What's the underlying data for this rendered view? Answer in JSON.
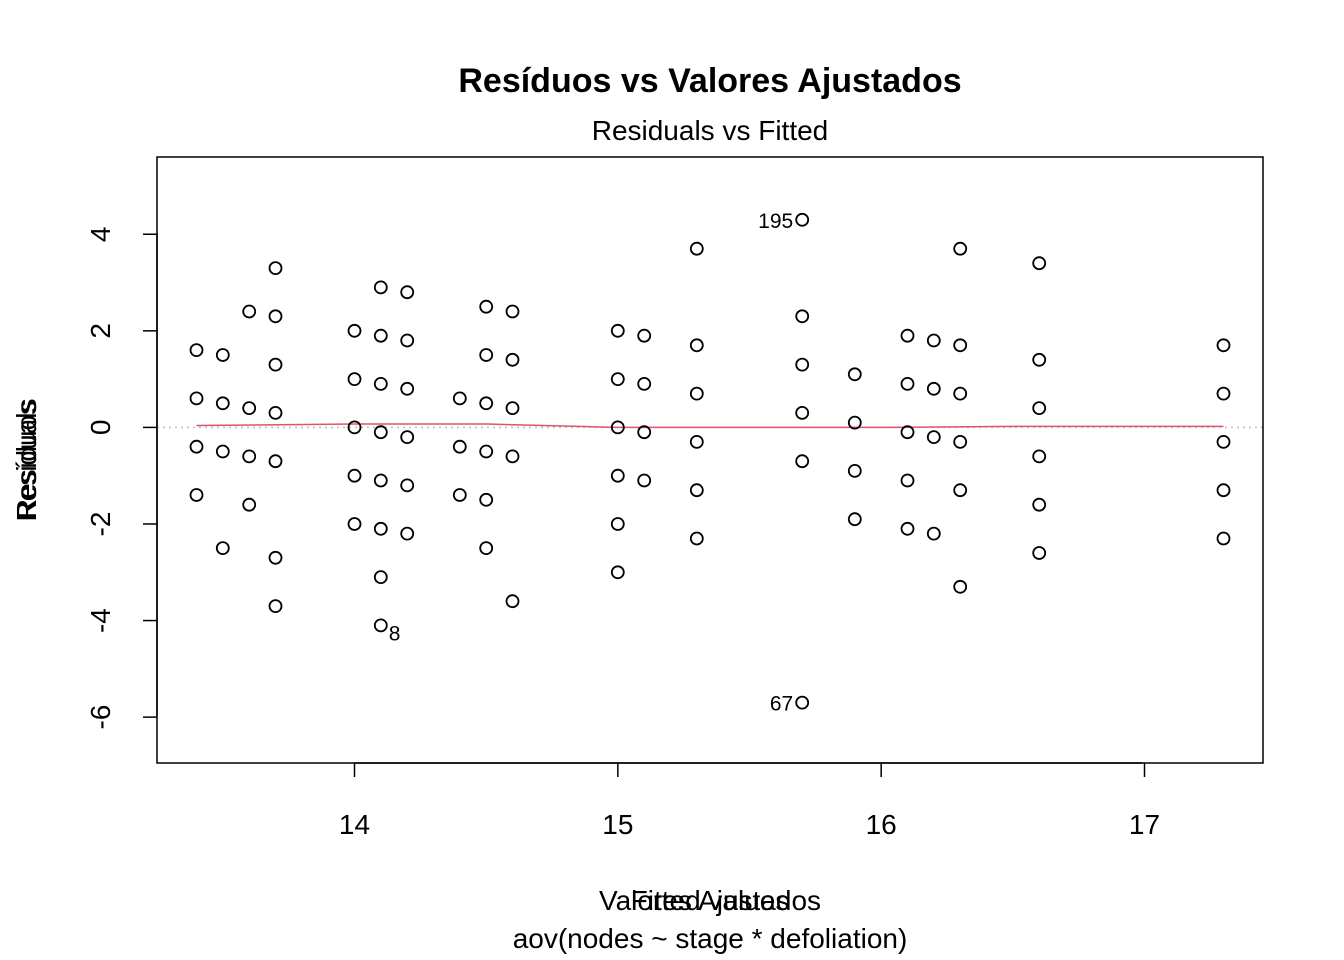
{
  "chart_data": {
    "type": "scatter",
    "title": "Resíduos vs Valores Ajustados",
    "subtitle": "Residuals vs Fitted",
    "xlabel_overlap_1": "Valores Ajustados",
    "xlabel_overlap_2": "Fitted values",
    "xlabel_caption": "aov(nodes ~ stage * defoliation)",
    "ylabel_overlap_1": "Resíduos",
    "ylabel_overlap_2": "Residuals",
    "xlim": [
      13.25,
      17.45
    ],
    "ylim": [
      -6.95,
      5.6
    ],
    "x_ticks": [
      14,
      15,
      16,
      17
    ],
    "x_tick_labels": [
      "14",
      "15",
      "16",
      "17"
    ],
    "y_ticks": [
      -6,
      -4,
      -2,
      0,
      2,
      4
    ],
    "y_tick_labels": [
      "-6",
      "-4",
      "-2",
      "0",
      "2",
      "4"
    ],
    "reference_line": {
      "y": 0,
      "style": "dotted",
      "color": "#bebebe"
    },
    "smooth_line": {
      "color": "#df536b",
      "x": [
        13.4,
        14.0,
        14.5,
        15.0,
        15.5,
        16.0,
        16.5,
        17.3
      ],
      "y": [
        0.04,
        0.07,
        0.07,
        0.0,
        0.0,
        0.0,
        0.02,
        0.02
      ]
    },
    "series": [
      {
        "points": [
          {
            "x": 13.4,
            "y": 1.6
          },
          {
            "x": 13.4,
            "y": 0.6
          },
          {
            "x": 13.4,
            "y": -0.4
          },
          {
            "x": 13.4,
            "y": -1.4
          },
          {
            "x": 13.5,
            "y": 1.5
          },
          {
            "x": 13.5,
            "y": 0.5
          },
          {
            "x": 13.5,
            "y": -0.5
          },
          {
            "x": 13.5,
            "y": -2.5
          },
          {
            "x": 13.6,
            "y": 2.4
          },
          {
            "x": 13.6,
            "y": 0.4
          },
          {
            "x": 13.6,
            "y": -0.6
          },
          {
            "x": 13.6,
            "y": -1.6
          },
          {
            "x": 13.7,
            "y": 3.3
          },
          {
            "x": 13.7,
            "y": 2.3
          },
          {
            "x": 13.7,
            "y": 1.3
          },
          {
            "x": 13.7,
            "y": 0.3
          },
          {
            "x": 13.7,
            "y": -0.7
          },
          {
            "x": 13.7,
            "y": -2.7
          },
          {
            "x": 13.7,
            "y": -3.7
          },
          {
            "x": 14.0,
            "y": 2.0
          },
          {
            "x": 14.0,
            "y": 1.0
          },
          {
            "x": 14.0,
            "y": 0.0
          },
          {
            "x": 14.0,
            "y": -1.0
          },
          {
            "x": 14.0,
            "y": -2.0
          },
          {
            "x": 14.1,
            "y": 2.9
          },
          {
            "x": 14.1,
            "y": 1.9
          },
          {
            "x": 14.1,
            "y": 0.9
          },
          {
            "x": 14.1,
            "y": -0.1
          },
          {
            "x": 14.1,
            "y": -1.1
          },
          {
            "x": 14.1,
            "y": -2.1
          },
          {
            "x": 14.1,
            "y": -3.1
          },
          {
            "x": 14.1,
            "y": -4.1,
            "label": "8"
          },
          {
            "x": 14.2,
            "y": 2.8
          },
          {
            "x": 14.2,
            "y": 1.8
          },
          {
            "x": 14.2,
            "y": 0.8
          },
          {
            "x": 14.2,
            "y": -0.2
          },
          {
            "x": 14.2,
            "y": -1.2
          },
          {
            "x": 14.2,
            "y": -2.2
          },
          {
            "x": 14.4,
            "y": 0.6
          },
          {
            "x": 14.4,
            "y": -0.4
          },
          {
            "x": 14.4,
            "y": -1.4
          },
          {
            "x": 14.5,
            "y": 2.5
          },
          {
            "x": 14.5,
            "y": 1.5
          },
          {
            "x": 14.5,
            "y": 0.5
          },
          {
            "x": 14.5,
            "y": -0.5
          },
          {
            "x": 14.5,
            "y": -1.5
          },
          {
            "x": 14.5,
            "y": -2.5
          },
          {
            "x": 14.6,
            "y": 2.4
          },
          {
            "x": 14.6,
            "y": 1.4
          },
          {
            "x": 14.6,
            "y": 0.4
          },
          {
            "x": 14.6,
            "y": -0.6
          },
          {
            "x": 14.6,
            "y": -3.6
          },
          {
            "x": 15.0,
            "y": 2.0
          },
          {
            "x": 15.0,
            "y": 1.0
          },
          {
            "x": 15.0,
            "y": 0.0
          },
          {
            "x": 15.0,
            "y": -1.0
          },
          {
            "x": 15.0,
            "y": -2.0
          },
          {
            "x": 15.0,
            "y": -3.0
          },
          {
            "x": 15.1,
            "y": 1.9
          },
          {
            "x": 15.1,
            "y": 0.9
          },
          {
            "x": 15.1,
            "y": -0.1
          },
          {
            "x": 15.1,
            "y": -1.1
          },
          {
            "x": 15.3,
            "y": 3.7
          },
          {
            "x": 15.3,
            "y": 1.7
          },
          {
            "x": 15.3,
            "y": 0.7
          },
          {
            "x": 15.3,
            "y": -0.3
          },
          {
            "x": 15.3,
            "y": -1.3
          },
          {
            "x": 15.3,
            "y": -2.3
          },
          {
            "x": 15.7,
            "y": 4.3,
            "label": "195"
          },
          {
            "x": 15.7,
            "y": 2.3
          },
          {
            "x": 15.7,
            "y": 1.3
          },
          {
            "x": 15.7,
            "y": 0.3
          },
          {
            "x": 15.7,
            "y": -0.7
          },
          {
            "x": 15.7,
            "y": -5.7,
            "label": "67"
          },
          {
            "x": 15.9,
            "y": 1.1
          },
          {
            "x": 15.9,
            "y": 0.1
          },
          {
            "x": 15.9,
            "y": -0.9
          },
          {
            "x": 15.9,
            "y": -1.9
          },
          {
            "x": 16.1,
            "y": 1.9
          },
          {
            "x": 16.1,
            "y": 0.9
          },
          {
            "x": 16.1,
            "y": -0.1
          },
          {
            "x": 16.1,
            "y": -1.1
          },
          {
            "x": 16.1,
            "y": -2.1
          },
          {
            "x": 16.2,
            "y": 1.8
          },
          {
            "x": 16.2,
            "y": 0.8
          },
          {
            "x": 16.2,
            "y": -0.2
          },
          {
            "x": 16.2,
            "y": -2.2
          },
          {
            "x": 16.3,
            "y": 3.7
          },
          {
            "x": 16.3,
            "y": 1.7
          },
          {
            "x": 16.3,
            "y": 0.7
          },
          {
            "x": 16.3,
            "y": -0.3
          },
          {
            "x": 16.3,
            "y": -1.3
          },
          {
            "x": 16.3,
            "y": -3.3
          },
          {
            "x": 16.6,
            "y": 3.4
          },
          {
            "x": 16.6,
            "y": 1.4
          },
          {
            "x": 16.6,
            "y": 0.4
          },
          {
            "x": 16.6,
            "y": -0.6
          },
          {
            "x": 16.6,
            "y": -1.6
          },
          {
            "x": 16.6,
            "y": -2.6
          },
          {
            "x": 17.3,
            "y": 1.7
          },
          {
            "x": 17.3,
            "y": 0.7
          },
          {
            "x": 17.3,
            "y": -0.3
          },
          {
            "x": 17.3,
            "y": -1.3
          },
          {
            "x": 17.3,
            "y": -2.3
          }
        ]
      }
    ]
  }
}
